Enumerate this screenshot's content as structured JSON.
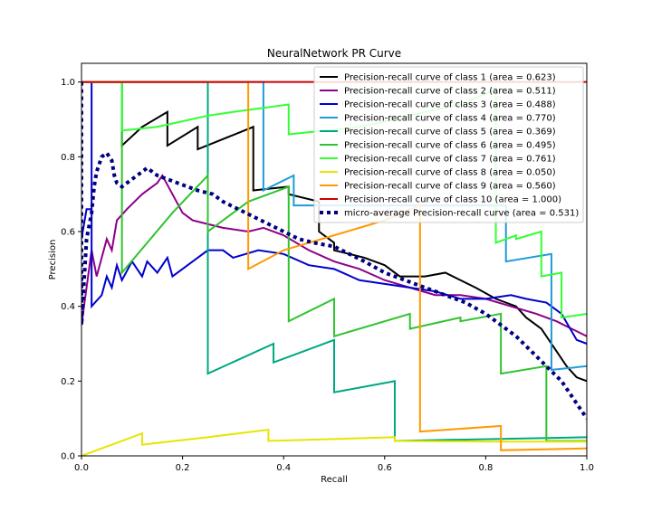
{
  "chart_data": {
    "type": "line",
    "title": "NeuralNetwork PR Curve",
    "xlabel": "Recall",
    "ylabel": "Precision",
    "xlim": [
      0.0,
      1.0
    ],
    "ylim": [
      0.0,
      1.05
    ],
    "x_ticks": [
      "0.0",
      "0.2",
      "0.4",
      "0.6",
      "0.8",
      "1.0"
    ],
    "y_ticks": [
      "0.0",
      "0.2",
      "0.4",
      "0.6",
      "0.8",
      "1.0"
    ],
    "grid": false,
    "legend_position": "top-right",
    "series": [
      {
        "name": "Precision-recall curve of class 1 (area = 0.623)",
        "color": "#000000",
        "style": "solid",
        "points": [
          [
            0.0,
            1.0
          ],
          [
            0.08,
            1.0
          ],
          [
            0.08,
            0.83
          ],
          [
            0.12,
            0.88
          ],
          [
            0.17,
            0.92
          ],
          [
            0.17,
            0.83
          ],
          [
            0.23,
            0.88
          ],
          [
            0.23,
            0.82
          ],
          [
            0.34,
            0.88
          ],
          [
            0.34,
            0.71
          ],
          [
            0.41,
            0.72
          ],
          [
            0.41,
            0.7
          ],
          [
            0.47,
            0.68
          ],
          [
            0.47,
            0.6
          ],
          [
            0.5,
            0.57
          ],
          [
            0.5,
            0.55
          ],
          [
            0.56,
            0.53
          ],
          [
            0.6,
            0.51
          ],
          [
            0.63,
            0.48
          ],
          [
            0.68,
            0.48
          ],
          [
            0.72,
            0.49
          ],
          [
            0.75,
            0.47
          ],
          [
            0.78,
            0.45
          ],
          [
            0.82,
            0.42
          ],
          [
            0.86,
            0.4
          ],
          [
            0.88,
            0.37
          ],
          [
            0.91,
            0.34
          ],
          [
            0.93,
            0.3
          ],
          [
            0.96,
            0.24
          ],
          [
            0.98,
            0.21
          ],
          [
            1.0,
            0.2
          ]
        ]
      },
      {
        "name": "Precision-recall curve of class 2 (area = 0.511)",
        "color": "#8b008b",
        "style": "solid",
        "points": [
          [
            0.0,
            0.35
          ],
          [
            0.01,
            0.45
          ],
          [
            0.02,
            0.55
          ],
          [
            0.03,
            0.48
          ],
          [
            0.05,
            0.58
          ],
          [
            0.06,
            0.55
          ],
          [
            0.07,
            0.63
          ],
          [
            0.09,
            0.66
          ],
          [
            0.12,
            0.7
          ],
          [
            0.15,
            0.73
          ],
          [
            0.16,
            0.75
          ],
          [
            0.18,
            0.7
          ],
          [
            0.2,
            0.65
          ],
          [
            0.22,
            0.63
          ],
          [
            0.25,
            0.62
          ],
          [
            0.28,
            0.61
          ],
          [
            0.33,
            0.6
          ],
          [
            0.36,
            0.61
          ],
          [
            0.4,
            0.59
          ],
          [
            0.45,
            0.55
          ],
          [
            0.5,
            0.52
          ],
          [
            0.55,
            0.5
          ],
          [
            0.6,
            0.47
          ],
          [
            0.65,
            0.45
          ],
          [
            0.7,
            0.43
          ],
          [
            0.75,
            0.43
          ],
          [
            0.8,
            0.42
          ],
          [
            0.85,
            0.4
          ],
          [
            0.9,
            0.38
          ],
          [
            0.94,
            0.36
          ],
          [
            0.97,
            0.34
          ],
          [
            1.0,
            0.32
          ]
        ]
      },
      {
        "name": "Precision-recall curve of class 3 (area = 0.488)",
        "color": "#0000cd",
        "style": "solid",
        "points": [
          [
            0.0,
            0.58
          ],
          [
            0.01,
            0.66
          ],
          [
            0.02,
            0.66
          ],
          [
            0.02,
            1.0
          ],
          [
            0.02,
            0.4
          ],
          [
            0.04,
            0.43
          ],
          [
            0.05,
            0.48
          ],
          [
            0.06,
            0.45
          ],
          [
            0.07,
            0.51
          ],
          [
            0.08,
            0.47
          ],
          [
            0.1,
            0.52
          ],
          [
            0.12,
            0.48
          ],
          [
            0.13,
            0.52
          ],
          [
            0.15,
            0.49
          ],
          [
            0.17,
            0.53
          ],
          [
            0.18,
            0.48
          ],
          [
            0.22,
            0.52
          ],
          [
            0.25,
            0.55
          ],
          [
            0.28,
            0.55
          ],
          [
            0.3,
            0.53
          ],
          [
            0.35,
            0.55
          ],
          [
            0.4,
            0.54
          ],
          [
            0.45,
            0.51
          ],
          [
            0.5,
            0.5
          ],
          [
            0.55,
            0.47
          ],
          [
            0.6,
            0.46
          ],
          [
            0.65,
            0.45
          ],
          [
            0.7,
            0.44
          ],
          [
            0.75,
            0.42
          ],
          [
            0.8,
            0.42
          ],
          [
            0.85,
            0.43
          ],
          [
            0.88,
            0.42
          ],
          [
            0.92,
            0.41
          ],
          [
            0.95,
            0.38
          ],
          [
            0.98,
            0.31
          ],
          [
            1.0,
            0.3
          ]
        ]
      },
      {
        "name": "Precision-recall curve of class 4 (area = 0.770)",
        "color": "#1f9bd7",
        "style": "solid",
        "points": [
          [
            0.0,
            1.0
          ],
          [
            0.36,
            1.0
          ],
          [
            0.36,
            0.71
          ],
          [
            0.42,
            0.75
          ],
          [
            0.42,
            0.67
          ],
          [
            0.84,
            0.67
          ],
          [
            0.84,
            0.52
          ],
          [
            0.93,
            0.54
          ],
          [
            0.93,
            0.23
          ],
          [
            1.0,
            0.24
          ]
        ]
      },
      {
        "name": "Precision-recall curve of class 5 (area = 0.369)",
        "color": "#00a882",
        "style": "solid",
        "points": [
          [
            0.0,
            1.0
          ],
          [
            0.25,
            1.0
          ],
          [
            0.25,
            0.22
          ],
          [
            0.38,
            0.3
          ],
          [
            0.38,
            0.25
          ],
          [
            0.5,
            0.31
          ],
          [
            0.5,
            0.17
          ],
          [
            0.62,
            0.2
          ],
          [
            0.62,
            0.04
          ],
          [
            1.0,
            0.05
          ]
        ]
      },
      {
        "name": "Precision-recall curve of class 6 (area = 0.495)",
        "color": "#2ec42e",
        "style": "solid",
        "points": [
          [
            0.0,
            1.0
          ],
          [
            0.08,
            1.0
          ],
          [
            0.08,
            0.49
          ],
          [
            0.18,
            0.65
          ],
          [
            0.25,
            0.75
          ],
          [
            0.25,
            0.6
          ],
          [
            0.33,
            0.68
          ],
          [
            0.41,
            0.72
          ],
          [
            0.41,
            0.36
          ],
          [
            0.5,
            0.42
          ],
          [
            0.5,
            0.32
          ],
          [
            0.65,
            0.38
          ],
          [
            0.65,
            0.34
          ],
          [
            0.75,
            0.37
          ],
          [
            0.75,
            0.36
          ],
          [
            0.83,
            0.38
          ],
          [
            0.83,
            0.22
          ],
          [
            0.92,
            0.24
          ],
          [
            0.92,
            0.04
          ],
          [
            1.0,
            0.04
          ]
        ]
      },
      {
        "name": "Precision-recall curve of class 7 (area = 0.761)",
        "color": "#33ff33",
        "style": "solid",
        "points": [
          [
            0.0,
            1.0
          ],
          [
            0.08,
            1.0
          ],
          [
            0.08,
            0.87
          ],
          [
            0.15,
            0.88
          ],
          [
            0.25,
            0.91
          ],
          [
            0.3,
            0.92
          ],
          [
            0.41,
            0.94
          ],
          [
            0.41,
            0.86
          ],
          [
            0.55,
            0.88
          ],
          [
            0.62,
            0.9
          ],
          [
            0.68,
            0.92
          ],
          [
            0.75,
            0.94
          ],
          [
            0.82,
            0.98
          ],
          [
            0.82,
            0.57
          ],
          [
            0.86,
            0.59
          ],
          [
            0.86,
            0.58
          ],
          [
            0.91,
            0.6
          ],
          [
            0.91,
            0.48
          ],
          [
            0.95,
            0.49
          ],
          [
            0.95,
            0.37
          ],
          [
            1.0,
            0.38
          ]
        ]
      },
      {
        "name": "Precision-recall curve of class 8 (area = 0.050)",
        "color": "#e6e600",
        "style": "solid",
        "points": [
          [
            0.0,
            0.0
          ],
          [
            0.12,
            0.06
          ],
          [
            0.12,
            0.03
          ],
          [
            0.25,
            0.05
          ],
          [
            0.37,
            0.07
          ],
          [
            0.37,
            0.04
          ],
          [
            0.5,
            0.045
          ],
          [
            0.62,
            0.05
          ],
          [
            0.62,
            0.04
          ],
          [
            0.8,
            0.038
          ],
          [
            0.9,
            0.038
          ],
          [
            1.0,
            0.038
          ]
        ]
      },
      {
        "name": "Precision-recall curve of class 9 (area = 0.560)",
        "color": "#ff9900",
        "style": "solid",
        "points": [
          [
            0.0,
            1.0
          ],
          [
            0.33,
            1.0
          ],
          [
            0.33,
            0.5
          ],
          [
            0.4,
            0.55
          ],
          [
            0.45,
            0.57
          ],
          [
            0.5,
            0.59
          ],
          [
            0.55,
            0.61
          ],
          [
            0.6,
            0.63
          ],
          [
            0.67,
            0.67
          ],
          [
            0.67,
            0.065
          ],
          [
            0.83,
            0.08
          ],
          [
            0.83,
            0.015
          ],
          [
            1.0,
            0.02
          ]
        ]
      },
      {
        "name": "Precision-recall curve of class 10 (area = 1.000)",
        "color": "#cc0000",
        "style": "solid",
        "points": [
          [
            0.0,
            1.0
          ],
          [
            1.0,
            1.0
          ]
        ]
      },
      {
        "name": "micro-average Precision-recall curve (area = 0.531)",
        "color": "#000080",
        "style": "dotted",
        "points": [
          [
            0.0,
            1.0
          ],
          [
            0.0,
            0.35
          ],
          [
            0.01,
            0.58
          ],
          [
            0.02,
            0.65
          ],
          [
            0.025,
            0.72
          ],
          [
            0.03,
            0.76
          ],
          [
            0.035,
            0.78
          ],
          [
            0.04,
            0.8
          ],
          [
            0.05,
            0.81
          ],
          [
            0.06,
            0.79
          ],
          [
            0.065,
            0.75
          ],
          [
            0.07,
            0.73
          ],
          [
            0.08,
            0.72
          ],
          [
            0.09,
            0.73
          ],
          [
            0.1,
            0.74
          ],
          [
            0.11,
            0.75
          ],
          [
            0.12,
            0.76
          ],
          [
            0.13,
            0.77
          ],
          [
            0.14,
            0.76
          ],
          [
            0.15,
            0.75
          ],
          [
            0.17,
            0.74
          ],
          [
            0.19,
            0.73
          ],
          [
            0.21,
            0.72
          ],
          [
            0.23,
            0.71
          ],
          [
            0.26,
            0.7
          ],
          [
            0.28,
            0.68
          ],
          [
            0.31,
            0.66
          ],
          [
            0.34,
            0.64
          ],
          [
            0.37,
            0.62
          ],
          [
            0.4,
            0.6
          ],
          [
            0.43,
            0.58
          ],
          [
            0.46,
            0.57
          ],
          [
            0.5,
            0.56
          ],
          [
            0.53,
            0.54
          ],
          [
            0.56,
            0.52
          ],
          [
            0.6,
            0.49
          ],
          [
            0.64,
            0.47
          ],
          [
            0.68,
            0.45
          ],
          [
            0.72,
            0.43
          ],
          [
            0.76,
            0.41
          ],
          [
            0.8,
            0.38
          ],
          [
            0.83,
            0.35
          ],
          [
            0.86,
            0.32
          ],
          [
            0.89,
            0.28
          ],
          [
            0.92,
            0.24
          ],
          [
            0.95,
            0.2
          ],
          [
            0.97,
            0.16
          ],
          [
            0.99,
            0.12
          ],
          [
            1.0,
            0.1
          ]
        ]
      }
    ]
  }
}
